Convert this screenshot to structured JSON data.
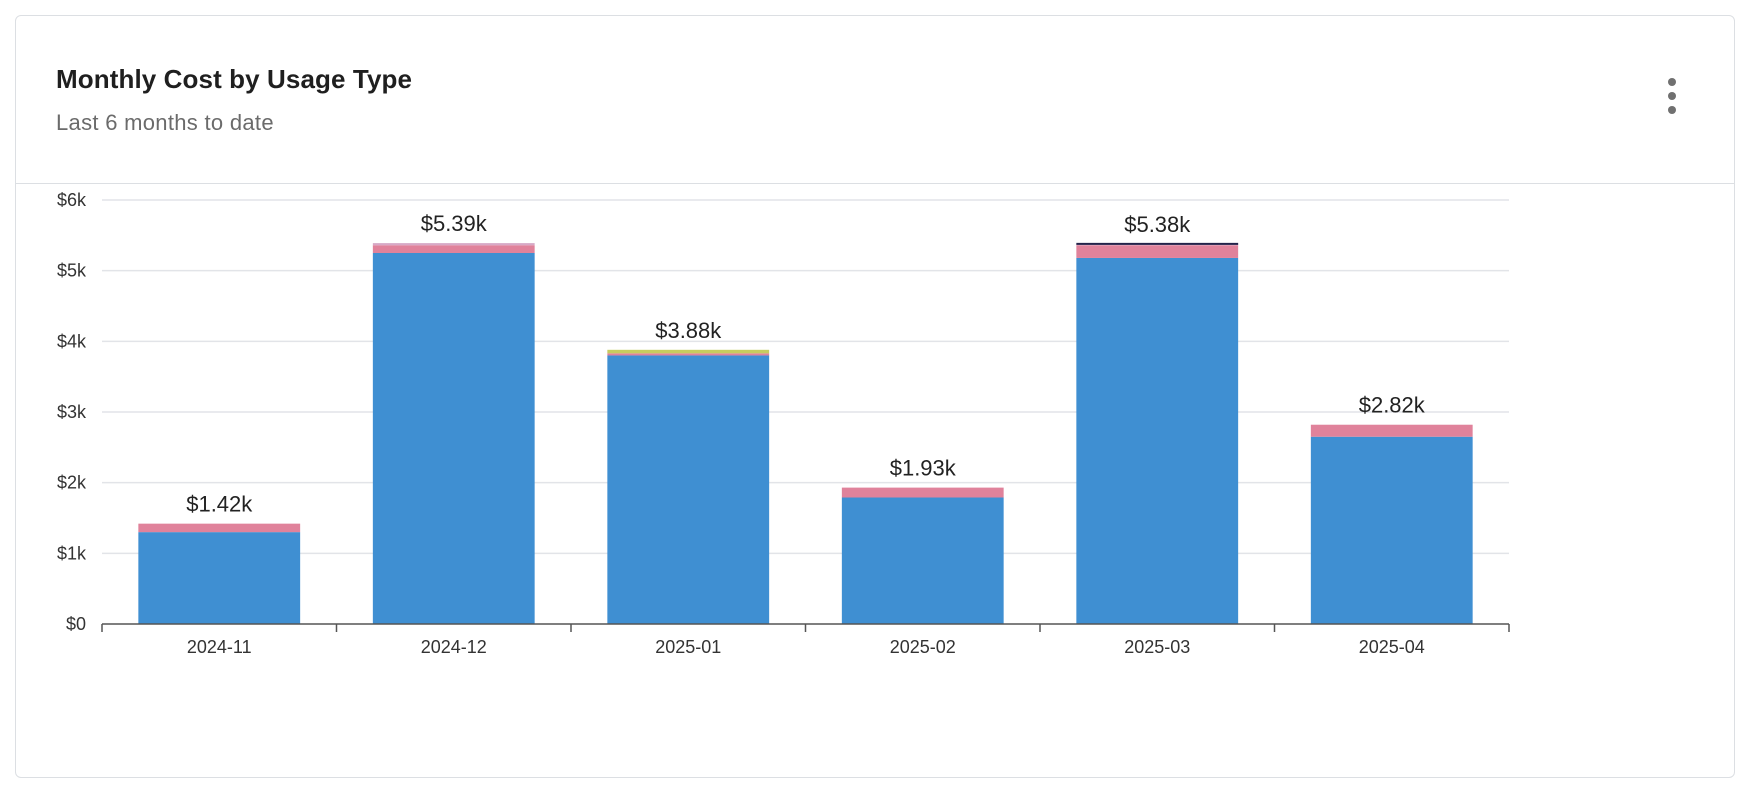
{
  "header": {
    "title": "Monthly Cost by Usage Type",
    "subtitle": "Last 6 months to date",
    "menu_icon": "more-vertical-icon"
  },
  "colors": {
    "compute": "#3f8fd2",
    "storage": "#e0829b",
    "network": "#c7cc5f",
    "other": "#23234a",
    "misc": "#d7a9c6",
    "gridline": "#e2e4e8",
    "axis": "#555555"
  },
  "chart_data": {
    "type": "bar",
    "stacked": true,
    "categories": [
      "2024-11",
      "2024-12",
      "2025-01",
      "2025-02",
      "2025-03",
      "2025-04"
    ],
    "series": [
      {
        "values": [
          1300,
          5250,
          3800,
          1790,
          5180,
          2650
        ],
        "color": "#3f8fd2"
      },
      {
        "values": [
          120,
          110,
          30,
          140,
          180,
          170
        ],
        "color": "#e0829b"
      },
      {
        "values": [
          0,
          0,
          50,
          0,
          0,
          0
        ],
        "color": "#c7cc5f"
      },
      {
        "values": [
          0,
          30,
          0,
          0,
          20,
          0
        ],
        "color": "#d7a9c6"
      }
    ],
    "totals": [
      1420,
      5390,
      3880,
      1930,
      5380,
      2820
    ],
    "total_labels": [
      "$1.42k",
      "$5.39k",
      "$3.88k",
      "$1.93k",
      "$5.38k",
      "$2.82k"
    ],
    "y_ticks": [
      0,
      1000,
      2000,
      3000,
      4000,
      5000,
      6000
    ],
    "y_tick_labels": [
      "$0",
      "$1k",
      "$2k",
      "$3k",
      "$4k",
      "$5k",
      "$6k"
    ],
    "ylim": [
      0,
      6000
    ],
    "grid": true,
    "legend": "none",
    "xlabel": "",
    "ylabel": ""
  }
}
